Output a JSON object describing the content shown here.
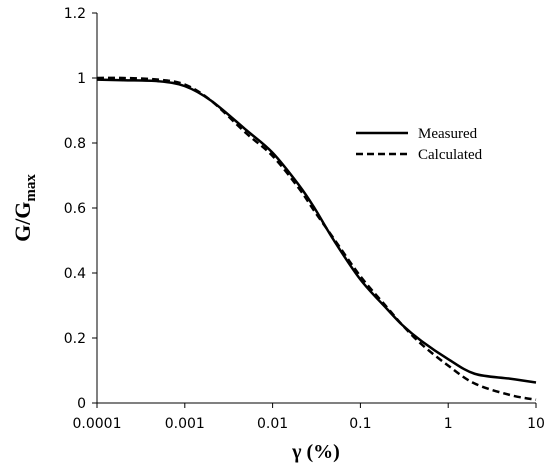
{
  "chart_data": {
    "type": "line",
    "xscale": "log",
    "xlim": [
      0.0001,
      10
    ],
    "ylim": [
      0,
      1.2
    ],
    "x_ticks": [
      "0.0001",
      "0.001",
      "0.01",
      "0.1",
      "1",
      "10"
    ],
    "y_ticks": [
      "0",
      "0.2",
      "0.4",
      "0.6",
      "0.8",
      "1",
      "1.2"
    ],
    "xlabel": "γ (%)",
    "ylabel": {
      "main": "G/G",
      "sub": "max"
    },
    "legend": {
      "placement": "right"
    },
    "grid": false,
    "series": [
      {
        "name": "Measured",
        "style": "solid",
        "color": "#000000",
        "points": [
          [
            0.0001,
            0.995
          ],
          [
            0.0002,
            0.993
          ],
          [
            0.0005,
            0.99
          ],
          [
            0.001,
            0.975
          ],
          [
            0.002,
            0.93
          ],
          [
            0.005,
            0.84
          ],
          [
            0.01,
            0.77
          ],
          [
            0.02,
            0.67
          ],
          [
            0.03,
            0.6
          ],
          [
            0.05,
            0.5
          ],
          [
            0.1,
            0.38
          ],
          [
            0.2,
            0.29
          ],
          [
            0.3,
            0.24
          ],
          [
            0.5,
            0.19
          ],
          [
            1,
            0.135
          ],
          [
            2,
            0.09
          ],
          [
            5,
            0.075
          ],
          [
            10,
            0.063
          ]
        ]
      },
      {
        "name": "Calculated",
        "style": "dashed",
        "color": "#000000",
        "points": [
          [
            0.0001,
            1.0
          ],
          [
            0.0002,
            1.0
          ],
          [
            0.0005,
            0.995
          ],
          [
            0.001,
            0.98
          ],
          [
            0.002,
            0.93
          ],
          [
            0.005,
            0.83
          ],
          [
            0.01,
            0.76
          ],
          [
            0.02,
            0.66
          ],
          [
            0.03,
            0.59
          ],
          [
            0.05,
            0.505
          ],
          [
            0.1,
            0.39
          ],
          [
            0.2,
            0.295
          ],
          [
            0.3,
            0.24
          ],
          [
            0.5,
            0.18
          ],
          [
            1,
            0.115
          ],
          [
            2,
            0.06
          ],
          [
            5,
            0.025
          ],
          [
            10,
            0.01
          ]
        ]
      }
    ]
  }
}
